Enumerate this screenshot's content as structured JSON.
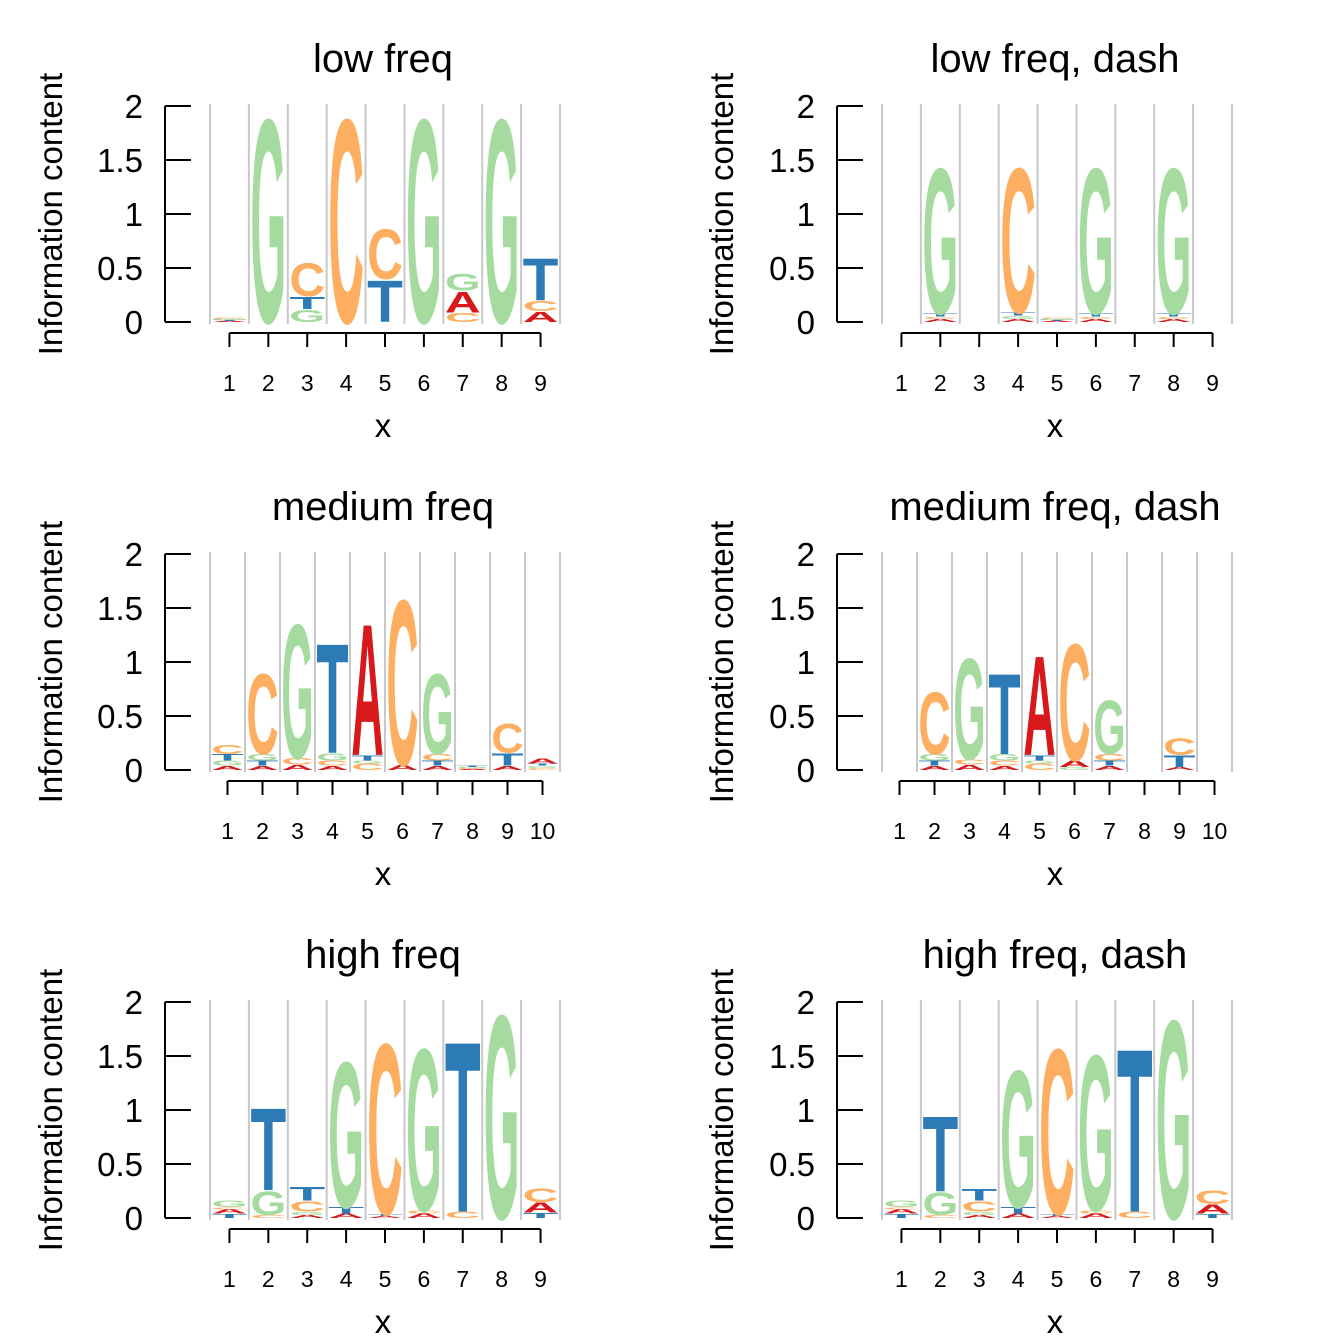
{
  "colors": {
    "A": "#d7191c",
    "C": "#fdae61",
    "G": "#a6dba0",
    "T": "#2c7bb6",
    "grid": "#c8c8c8",
    "axis": "#000000"
  },
  "chart_data": [
    {
      "type": "sequence-logo",
      "title": "low freq",
      "xlabel": "x",
      "ylabel": "Information content",
      "ylim": [
        0,
        2
      ],
      "yticks": [
        0,
        0.5,
        1,
        1.5,
        2
      ],
      "ytick_labels": [
        "0",
        "0.5",
        "1",
        "1.5",
        "2"
      ],
      "positions": [
        1,
        2,
        3,
        4,
        5,
        6,
        7,
        8,
        9
      ],
      "grid": true,
      "stacks": [
        [
          [
            "A",
            0.01
          ],
          [
            "T",
            0.01
          ],
          [
            "G",
            0.01
          ],
          [
            "C",
            0.01
          ]
        ],
        [
          [
            "G",
            1.97
          ]
        ],
        [
          [
            "G",
            0.12
          ],
          [
            "T",
            0.12
          ],
          [
            "C",
            0.32
          ]
        ],
        [
          [
            "C",
            1.97
          ]
        ],
        [
          [
            "T",
            0.4
          ],
          [
            "C",
            0.48
          ]
        ],
        [
          [
            "G",
            1.97
          ]
        ],
        [
          [
            "C",
            0.09
          ],
          [
            "A",
            0.2
          ],
          [
            "G",
            0.16
          ]
        ],
        [
          [
            "G",
            1.97
          ]
        ],
        [
          [
            "A",
            0.1
          ],
          [
            "C",
            0.1
          ],
          [
            "T",
            0.41
          ]
        ]
      ]
    },
    {
      "type": "sequence-logo",
      "title": "low freq, dash",
      "xlabel": "x",
      "ylabel": "Information content",
      "ylim": [
        0,
        2
      ],
      "yticks": [
        0,
        0.5,
        1,
        1.5,
        2
      ],
      "ytick_labels": [
        "0",
        "0.5",
        "1",
        "1.5",
        "2"
      ],
      "positions": [
        1,
        2,
        3,
        4,
        5,
        6,
        7,
        8,
        9
      ],
      "grid": true,
      "stacks": [
        [],
        [
          [
            "A",
            0.03
          ],
          [
            "C",
            0.02
          ],
          [
            "T",
            0.03
          ],
          [
            "G",
            1.41
          ]
        ],
        [],
        [
          [
            "A",
            0.03
          ],
          [
            "G",
            0.03
          ],
          [
            "T",
            0.03
          ],
          [
            "C",
            1.4
          ]
        ],
        [
          [
            "A",
            0.01
          ],
          [
            "T",
            0.01
          ],
          [
            "G",
            0.01
          ],
          [
            "C",
            0.01
          ]
        ],
        [
          [
            "A",
            0.03
          ],
          [
            "C",
            0.02
          ],
          [
            "T",
            0.03
          ],
          [
            "G",
            1.41
          ]
        ],
        [],
        [
          [
            "A",
            0.03
          ],
          [
            "C",
            0.02
          ],
          [
            "T",
            0.03
          ],
          [
            "G",
            1.41
          ]
        ],
        []
      ]
    },
    {
      "type": "sequence-logo",
      "title": "medium freq",
      "xlabel": "x",
      "ylabel": "Information content",
      "ylim": [
        0,
        2
      ],
      "yticks": [
        0,
        0.5,
        1,
        1.5,
        2
      ],
      "ytick_labels": [
        "0",
        "0.5",
        "1",
        "1.5",
        "2"
      ],
      "positions": [
        1,
        2,
        3,
        4,
        5,
        6,
        7,
        8,
        9,
        10
      ],
      "grid": true,
      "stacks": [
        [
          [
            "A",
            0.04
          ],
          [
            "G",
            0.05
          ],
          [
            "T",
            0.06
          ],
          [
            "C",
            0.09
          ]
        ],
        [
          [
            "A",
            0.04
          ],
          [
            "T",
            0.05
          ],
          [
            "G",
            0.06
          ],
          [
            "C",
            0.78
          ]
        ],
        [
          [
            "A",
            0.05
          ],
          [
            "C",
            0.06
          ],
          [
            "G",
            1.3
          ]
        ],
        [
          [
            "A",
            0.04
          ],
          [
            "C",
            0.05
          ],
          [
            "G",
            0.07
          ],
          [
            "T",
            1.06
          ]
        ],
        [
          [
            "C",
            0.06
          ],
          [
            "G",
            0.03
          ],
          [
            "T",
            0.05
          ],
          [
            "A",
            1.27
          ]
        ],
        [
          [
            "A",
            0.05
          ],
          [
            "C",
            1.6
          ]
        ],
        [
          [
            "A",
            0.04
          ],
          [
            "T",
            0.05
          ],
          [
            "C",
            0.06
          ],
          [
            "G",
            0.78
          ]
        ],
        [
          [
            "A",
            0.01
          ],
          [
            "C",
            0.01
          ],
          [
            "G",
            0.01
          ],
          [
            "T",
            0.01
          ]
        ],
        [
          [
            "A",
            0.04
          ],
          [
            "T",
            0.12
          ],
          [
            "C",
            0.28
          ]
        ],
        [
          [
            "C",
            0.02
          ],
          [
            "G",
            0.02
          ],
          [
            "T",
            0.02
          ],
          [
            "A",
            0.05
          ]
        ]
      ]
    },
    {
      "type": "sequence-logo",
      "title": "medium freq, dash",
      "xlabel": "x",
      "ylabel": "Information content",
      "ylim": [
        0,
        2
      ],
      "yticks": [
        0,
        0.5,
        1,
        1.5,
        2
      ],
      "ytick_labels": [
        "0",
        "0.5",
        "1",
        "1.5",
        "2"
      ],
      "positions": [
        1,
        2,
        3,
        4,
        5,
        6,
        7,
        8,
        9,
        10
      ],
      "grid": true,
      "stacks": [
        [
          [
            "A",
            0.002
          ],
          [
            "C",
            0.002
          ],
          [
            "G",
            0.002
          ],
          [
            "T",
            0.002
          ]
        ],
        [
          [
            "A",
            0.04
          ],
          [
            "T",
            0.05
          ],
          [
            "G",
            0.06
          ],
          [
            "C",
            0.6
          ]
        ],
        [
          [
            "A",
            0.05
          ],
          [
            "C",
            0.05
          ],
          [
            "G",
            0.98
          ]
        ],
        [
          [
            "A",
            0.04
          ],
          [
            "C",
            0.05
          ],
          [
            "G",
            0.06
          ],
          [
            "T",
            0.78
          ]
        ],
        [
          [
            "C",
            0.06
          ],
          [
            "G",
            0.03
          ],
          [
            "T",
            0.05
          ],
          [
            "A",
            0.96
          ]
        ],
        [
          [
            "G",
            0.03
          ],
          [
            "A",
            0.06
          ],
          [
            "C",
            1.13
          ]
        ],
        [
          [
            "A",
            0.04
          ],
          [
            "T",
            0.05
          ],
          [
            "C",
            0.06
          ],
          [
            "G",
            0.52
          ]
        ],
        [],
        [
          [
            "A",
            0.03
          ],
          [
            "T",
            0.11
          ],
          [
            "C",
            0.16
          ]
        ],
        []
      ]
    },
    {
      "type": "sequence-logo",
      "title": "high freq",
      "xlabel": "x",
      "ylabel": "Information content",
      "ylim": [
        0,
        2
      ],
      "yticks": [
        0,
        0.5,
        1,
        1.5,
        2
      ],
      "ytick_labels": [
        "0",
        "0.5",
        "1",
        "1.5",
        "2"
      ],
      "positions": [
        1,
        2,
        3,
        4,
        5,
        6,
        7,
        8,
        9
      ],
      "grid": true,
      "stacks": [
        [
          [
            "T",
            0.04
          ],
          [
            "A",
            0.04
          ],
          [
            "C",
            0.02
          ],
          [
            "G",
            0.06
          ]
        ],
        [
          [
            "C",
            0.03
          ],
          [
            "G",
            0.23
          ],
          [
            "T",
            0.8
          ]
        ],
        [
          [
            "A",
            0.03
          ],
          [
            "G",
            0.03
          ],
          [
            "C",
            0.1
          ],
          [
            "T",
            0.13
          ]
        ],
        [
          [
            "A",
            0.04
          ],
          [
            "T",
            0.06
          ],
          [
            "G",
            1.41
          ]
        ],
        [
          [
            "A",
            0.02
          ],
          [
            "T",
            0.02
          ],
          [
            "C",
            1.65
          ]
        ],
        [
          [
            "A",
            0.04
          ],
          [
            "C",
            0.03
          ],
          [
            "G",
            1.57
          ]
        ],
        [
          [
            "C",
            0.06
          ],
          [
            "T",
            1.65
          ]
        ],
        [
          [
            "G",
            1.97
          ]
        ],
        [
          [
            "T",
            0.05
          ],
          [
            "A",
            0.1
          ],
          [
            "C",
            0.13
          ]
        ]
      ]
    },
    {
      "type": "sequence-logo",
      "title": "high freq, dash",
      "xlabel": "x",
      "ylabel": "Information content",
      "ylim": [
        0,
        2
      ],
      "yticks": [
        0,
        0.5,
        1,
        1.5,
        2
      ],
      "ytick_labels": [
        "0",
        "0.5",
        "1",
        "1.5",
        "2"
      ],
      "positions": [
        1,
        2,
        3,
        4,
        5,
        6,
        7,
        8,
        9
      ],
      "grid": true,
      "stacks": [
        [
          [
            "T",
            0.04
          ],
          [
            "A",
            0.04
          ],
          [
            "C",
            0.02
          ],
          [
            "G",
            0.06
          ]
        ],
        [
          [
            "C",
            0.03
          ],
          [
            "G",
            0.22
          ],
          [
            "T",
            0.73
          ]
        ],
        [
          [
            "A",
            0.03
          ],
          [
            "G",
            0.03
          ],
          [
            "C",
            0.1
          ],
          [
            "T",
            0.11
          ]
        ],
        [
          [
            "A",
            0.04
          ],
          [
            "T",
            0.06
          ],
          [
            "G",
            1.33
          ]
        ],
        [
          [
            "A",
            0.02
          ],
          [
            "T",
            0.02
          ],
          [
            "C",
            1.6
          ]
        ],
        [
          [
            "A",
            0.04
          ],
          [
            "C",
            0.03
          ],
          [
            "G",
            1.51
          ]
        ],
        [
          [
            "C",
            0.06
          ],
          [
            "T",
            1.58
          ]
        ],
        [
          [
            "G",
            1.92
          ]
        ],
        [
          [
            "T",
            0.04
          ],
          [
            "A",
            0.09
          ],
          [
            "C",
            0.13
          ]
        ]
      ]
    }
  ]
}
